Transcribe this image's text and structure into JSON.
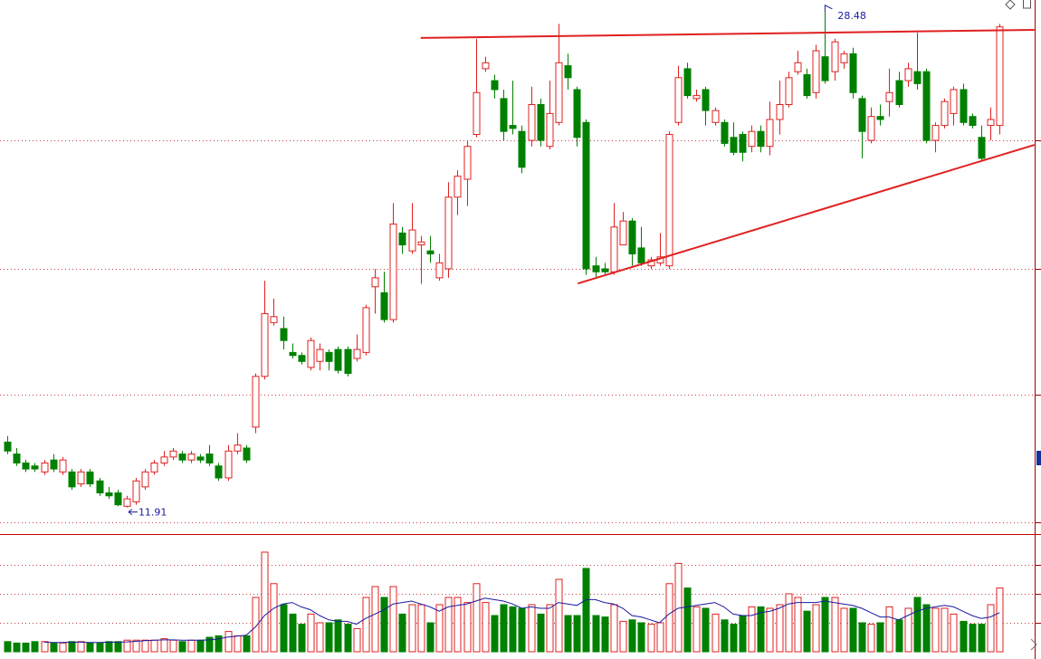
{
  "chart_data": {
    "type": "candlestick",
    "open": [
      14.1,
      13.7,
      13.4,
      13.3,
      13.1,
      13.5,
      13.1,
      13.1,
      12.7,
      13.1,
      12.8,
      12.4,
      12.4,
      11.95,
      12.1,
      12.6,
      13.1,
      13.4,
      13.6,
      13.7,
      13.5,
      13.6,
      13.7,
      13.3,
      12.9,
      13.8,
      13.9,
      14.6,
      16.3,
      18.1,
      17.9,
      17.1,
      17.0,
      16.6,
      16.8,
      17.1,
      17.2,
      17.2,
      16.9,
      17.1,
      19.3,
      19.1,
      18.2,
      21.1,
      20.5,
      20.7,
      20.5,
      19.6,
      19.9,
      22.3,
      22.9,
      24.4,
      26.6,
      26.2,
      25.6,
      24.7,
      24.5,
      24.2,
      25.4,
      24.0,
      24.8,
      26.7,
      25.9,
      24.8,
      20.0,
      19.9,
      19.8,
      20.7,
      21.5,
      20.6,
      20.0,
      20.1,
      20.0,
      24.8,
      26.6,
      25.6,
      25.9,
      24.8,
      24.8,
      24.3,
      24.4,
      24.0,
      24.5,
      24.0,
      24.9,
      25.4,
      26.5,
      26.4,
      25.8,
      27.0,
      26.5,
      26.8,
      27.1,
      25.6,
      24.2,
      25.0,
      25.5,
      26.2,
      26.2,
      26.5,
      26.5,
      24.2,
      24.7,
      25.1,
      25.9,
      25.0,
      24.3,
      24.7,
      24.7
    ],
    "close": [
      13.8,
      13.4,
      13.2,
      13.2,
      13.4,
      13.2,
      13.5,
      12.6,
      13.1,
      12.7,
      12.4,
      12.3,
      12.0,
      12.2,
      12.8,
      13.1,
      13.4,
      13.6,
      13.8,
      13.5,
      13.7,
      13.5,
      13.4,
      12.9,
      13.8,
      14.0,
      13.5,
      16.3,
      18.4,
      18.3,
      17.5,
      17.0,
      16.8,
      17.5,
      17.2,
      16.8,
      16.5,
      16.4,
      17.2,
      18.6,
      19.6,
      18.2,
      21.4,
      20.7,
      21.2,
      20.8,
      20.4,
      20.1,
      22.3,
      23.0,
      24.0,
      25.8,
      26.8,
      25.9,
      24.5,
      24.6,
      23.3,
      25.4,
      24.2,
      25.1,
      26.8,
      26.3,
      24.3,
      19.9,
      19.8,
      19.8,
      21.3,
      21.5,
      20.4,
      20.1,
      20.2,
      20.3,
      24.4,
      26.3,
      25.7,
      25.7,
      25.2,
      25.2,
      24.1,
      23.8,
      23.8,
      24.5,
      24.0,
      24.9,
      25.4,
      26.3,
      26.8,
      25.7,
      27.2,
      26.2,
      27.5,
      27.1,
      25.8,
      24.5,
      25.0,
      24.9,
      25.8,
      25.4,
      26.6,
      26.1,
      24.2,
      24.7,
      25.5,
      25.9,
      24.8,
      24.7,
      23.6,
      24.9,
      28.0
    ],
    "high": [
      14.3,
      13.9,
      13.5,
      13.4,
      13.5,
      13.7,
      13.6,
      13.2,
      13.2,
      13.2,
      12.9,
      12.6,
      12.5,
      12.3,
      12.9,
      13.2,
      13.5,
      13.8,
      13.9,
      13.8,
      13.8,
      13.7,
      14.0,
      13.4,
      14.0,
      14.4,
      14.0,
      16.4,
      19.5,
      18.9,
      18.3,
      17.4,
      17.1,
      17.6,
      17.4,
      17.2,
      17.3,
      17.3,
      17.7,
      18.7,
      19.9,
      19.8,
      22.1,
      21.3,
      22.1,
      21.0,
      21.0,
      20.4,
      22.8,
      23.2,
      24.2,
      27.6,
      27.0,
      26.4,
      25.9,
      26.2,
      24.7,
      26.0,
      25.6,
      26.2,
      28.1,
      27.1,
      26.0,
      24.9,
      20.3,
      20.1,
      22.1,
      21.8,
      21.6,
      21.3,
      20.3,
      21.1,
      24.5,
      26.7,
      26.8,
      25.9,
      26.0,
      25.3,
      24.9,
      24.8,
      24.5,
      24.7,
      24.7,
      25.5,
      26.2,
      26.5,
      27.2,
      26.6,
      27.4,
      28.48,
      27.6,
      27.2,
      27.3,
      25.7,
      25.3,
      25.4,
      26.6,
      26.5,
      26.8,
      27.8,
      26.6,
      24.8,
      25.6,
      26.0,
      26.1,
      25.1,
      24.7,
      25.3,
      28.1
    ],
    "low": [
      13.7,
      13.3,
      13.1,
      13.1,
      13.0,
      13.1,
      13.0,
      12.5,
      12.6,
      12.6,
      12.3,
      12.2,
      11.95,
      11.91,
      12.0,
      12.5,
      13.0,
      13.3,
      13.5,
      13.4,
      13.4,
      13.4,
      13.3,
      12.8,
      12.8,
      13.7,
      13.4,
      14.4,
      16.2,
      18.0,
      17.2,
      16.9,
      16.7,
      16.5,
      16.5,
      16.5,
      16.4,
      16.3,
      16.8,
      17.0,
      18.4,
      18.1,
      18.1,
      20.4,
      20.4,
      19.4,
      20.1,
      19.5,
      19.6,
      21.7,
      22.0,
      24.3,
      26.5,
      25.6,
      24.2,
      24.4,
      23.1,
      24.0,
      24.0,
      23.9,
      24.7,
      25.9,
      24.0,
      19.7,
      19.6,
      19.7,
      19.7,
      20.7,
      20.0,
      20.0,
      19.9,
      20.0,
      19.9,
      24.7,
      25.6,
      25.5,
      24.7,
      24.7,
      24.0,
      23.7,
      23.5,
      23.8,
      23.8,
      23.7,
      24.4,
      25.3,
      26.4,
      25.6,
      25.6,
      26.1,
      26.2,
      26.6,
      25.6,
      23.6,
      24.1,
      24.7,
      25.0,
      25.3,
      26.0,
      25.9,
      24.1,
      23.8,
      24.6,
      24.7,
      24.7,
      24.6,
      23.5,
      24.2,
      24.4
    ],
    "volume": [
      7,
      6,
      6,
      7,
      7,
      6,
      6,
      7,
      7,
      6,
      6,
      7,
      7,
      8,
      8,
      8,
      8,
      9,
      8,
      7,
      8,
      8,
      10,
      11,
      14,
      11,
      11,
      37.5,
      68.75,
      47,
      32.5,
      26,
      19,
      26,
      20,
      20,
      22,
      19,
      16,
      37.5,
      45,
      37.5,
      45,
      26,
      32.5,
      32.5,
      20,
      32.5,
      37.5,
      37.5,
      34,
      47,
      34,
      25,
      32.5,
      31,
      30,
      32.5,
      26,
      32.5,
      50,
      25,
      25,
      57.5,
      25,
      24,
      32.5,
      21,
      22,
      20,
      19,
      20,
      47,
      61,
      44,
      31,
      30,
      26,
      22,
      19,
      25,
      31,
      31,
      30,
      32.5,
      40,
      37.5,
      28,
      32.5,
      37.5,
      37.5,
      30,
      30,
      20,
      19,
      20,
      31,
      22,
      30,
      37.5,
      32.5,
      30,
      30,
      26,
      21,
      19,
      19,
      32.5,
      44
    ],
    "volume_ma": [
      null,
      null,
      null,
      null,
      6.6,
      6.4,
      6.4,
      6.6,
      6.6,
      6.4,
      6.4,
      6.6,
      6.6,
      6.8,
      7.2,
      7.6,
      8.0,
      8.2,
      8.2,
      8.0,
      8.0,
      8.0,
      8.2,
      8.8,
      10.2,
      10.8,
      11.4,
      17,
      25,
      30,
      33,
      34,
      31,
      29,
      25,
      22,
      21,
      21,
      19,
      23,
      26,
      29,
      33,
      34,
      35,
      33,
      31,
      28,
      31,
      32,
      33,
      35,
      37,
      36,
      35,
      33,
      30,
      31,
      30,
      30,
      34,
      33,
      32,
      36,
      36,
      34,
      33,
      30,
      25,
      24,
      22,
      20,
      26,
      30,
      31,
      32,
      33,
      34,
      31,
      26,
      25,
      25,
      27,
      28,
      30,
      33,
      34,
      34,
      34,
      35,
      34,
      33,
      32,
      30,
      27,
      24,
      24,
      22,
      25,
      28,
      30,
      31,
      32,
      31,
      28,
      25,
      23,
      24,
      27
    ],
    "ylim": [
      11.02,
      28.9
    ],
    "yticks": [
      11.4,
      15.7,
      19.9,
      24.2
    ],
    "volume_ylim": [
      0,
      80.6
    ],
    "volume_yticks": [
      20,
      40,
      60
    ],
    "up_color": "#e02020",
    "down_color": "#008000",
    "ma_color": "#1a1aa0",
    "trendlines": [
      {
        "x": [
          45.0,
          111.8
        ],
        "values": [
          27.63,
          27.9
        ],
        "color": "#e02020"
      },
      {
        "x": [
          62.1,
          111.8
        ],
        "values": [
          19.41,
          24.05
        ],
        "color": "#e02020"
      }
    ],
    "annotations": [
      {
        "value": 28.48
      },
      {
        "value": 11.91
      }
    ]
  }
}
